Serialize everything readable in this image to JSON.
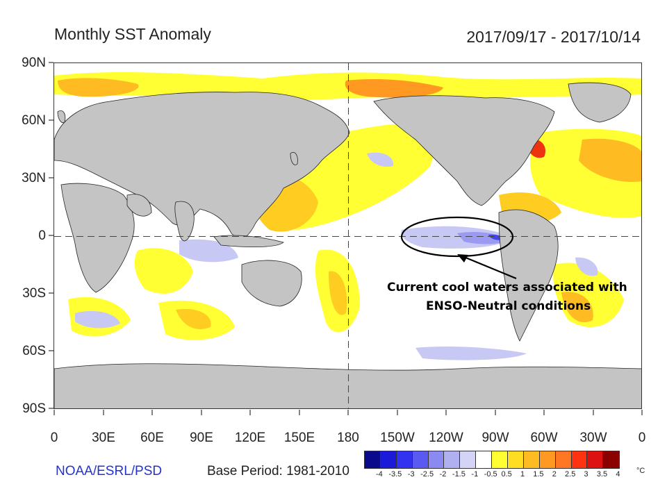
{
  "header": {
    "title": "Monthly SST Anomaly",
    "date_range": "2017/09/17 - 2017/10/14"
  },
  "axes": {
    "lat_labels": [
      "90N",
      "60N",
      "30N",
      "0",
      "30S",
      "60S",
      "90S"
    ],
    "lon_labels": [
      "0",
      "30E",
      "60E",
      "90E",
      "120E",
      "150E",
      "180",
      "150W",
      "120W",
      "90W",
      "60W",
      "30W",
      "0"
    ]
  },
  "footer": {
    "source": "NOAA/ESRL/PSD",
    "base_period": "Base Period: 1981-2010"
  },
  "colorbar": {
    "colors": [
      "#0a0a8c",
      "#1a1ad8",
      "#3232f0",
      "#5a5af2",
      "#8a8af0",
      "#b0b0f0",
      "#d4d4f6",
      "#ffffff",
      "#ffff33",
      "#ffdd22",
      "#ffbb22",
      "#ff9922",
      "#ff7722",
      "#ff3311",
      "#dd1111",
      "#8b0000"
    ],
    "ticks": [
      "-4",
      "-3.5",
      "-3",
      "-2.5",
      "-2",
      "-1.5",
      "-1",
      "-0.5",
      "0.5",
      "1",
      "1.5",
      "2",
      "2.5",
      "3",
      "3.5",
      "4"
    ],
    "unit": "°C"
  },
  "annotation": {
    "line1": "Current cool waters associated with",
    "line2": "ENSO-Neutral conditions"
  },
  "colors": {
    "land": "#c4c4c4",
    "warm_weak": "#ffff33",
    "warm_mid": "#ffcc22",
    "warm_strong": "#ff8822",
    "hot": "#ee3311",
    "cool_weak": "#c8c8f4",
    "cool_mid": "#9a9af0",
    "cool_strong": "#4444e0"
  }
}
